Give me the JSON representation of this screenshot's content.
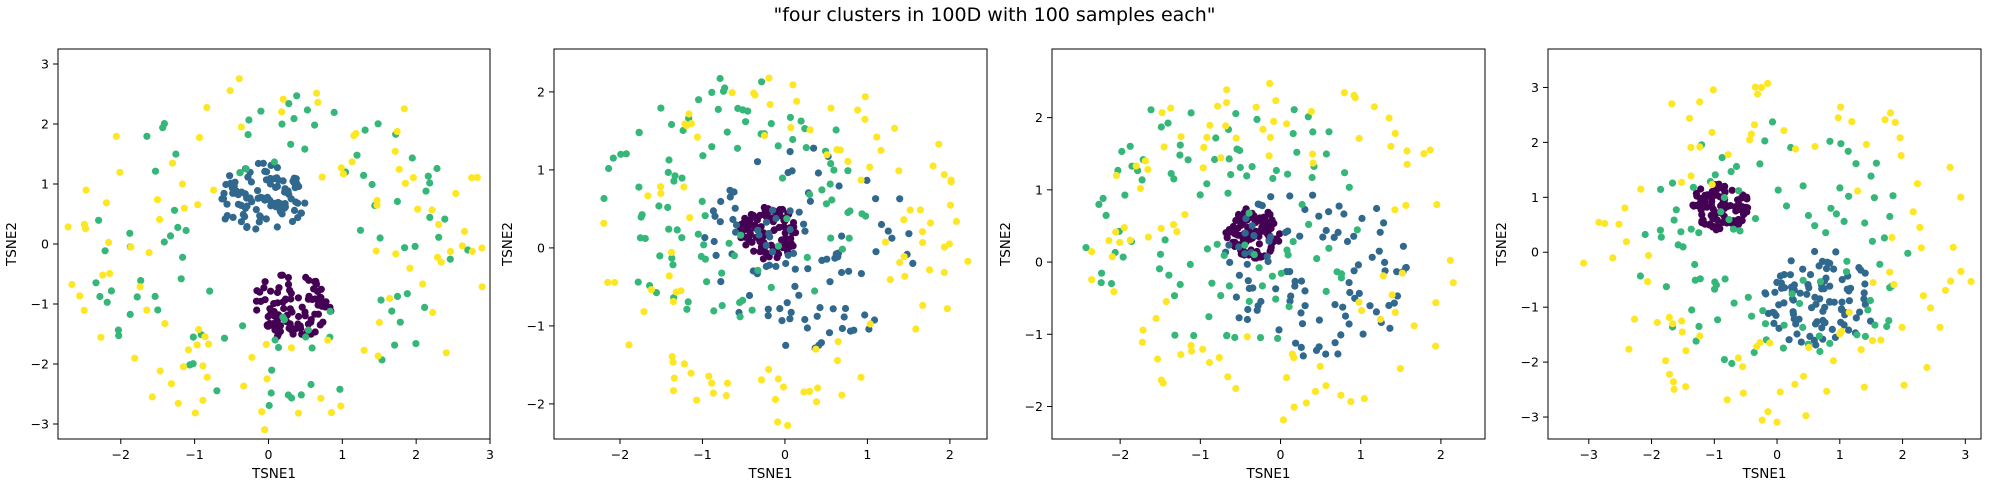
{
  "title": "\"four clusters in 100D with 100 samples each\"",
  "colors": {
    "c0": "#440154",
    "c1": "#31688e",
    "c2": "#35b779",
    "c3": "#fde725"
  },
  "chart_data": [
    {
      "type": "scatter",
      "xlabel": "TSNE1",
      "ylabel": "TSNE2",
      "xlim": [
        -2.85,
        3.0
      ],
      "ylim": [
        -3.25,
        3.25
      ],
      "xticks": [
        -2,
        -1,
        0,
        1,
        2,
        3
      ],
      "yticks": [
        -3,
        -2,
        -1,
        0,
        1,
        2,
        3
      ],
      "grid": false,
      "clusters": [
        {
          "color": "#440154",
          "center": [
            0.3,
            -1.05
          ],
          "inner": 0,
          "outer": 0.55,
          "n": 100
        },
        {
          "color": "#31688e",
          "center": [
            -0.1,
            0.75
          ],
          "inner": 0,
          "outer": 0.6,
          "n": 100
        },
        {
          "color": "#35b779",
          "center": [
            0.1,
            -0.1
          ],
          "inner": 1.0,
          "outer": 2.6,
          "n": 100
        },
        {
          "color": "#fde725",
          "center": [
            0.1,
            -0.1
          ],
          "inner": 1.3,
          "outer": 3.0,
          "n": 100
        }
      ]
    },
    {
      "type": "scatter",
      "xlabel": "TSNE1",
      "ylabel": "TSNE2",
      "xlim": [
        -2.8,
        2.45
      ],
      "ylim": [
        -2.45,
        2.55
      ],
      "xticks": [
        -2,
        -1,
        0,
        1,
        2
      ],
      "yticks": [
        -2,
        -1,
        0,
        1,
        2
      ],
      "grid": false,
      "clusters": [
        {
          "color": "#440154",
          "center": [
            -0.2,
            0.2
          ],
          "inner": 0,
          "outer": 0.35,
          "n": 100
        },
        {
          "color": "#31688e",
          "center": [
            0.3,
            0.0
          ],
          "inner": 0.2,
          "outer": 1.3,
          "n": 100
        },
        {
          "color": "#35b779",
          "center": [
            -0.6,
            0.6
          ],
          "inner": 0.4,
          "outer": 1.6,
          "n": 100
        },
        {
          "color": "#fde725",
          "center": [
            0.0,
            0.0
          ],
          "inner": 1.2,
          "outer": 2.3,
          "n": 100
        }
      ]
    },
    {
      "type": "scatter",
      "xlabel": "TSNE1",
      "ylabel": "TSNE2",
      "xlim": [
        -2.85,
        2.55
      ],
      "ylim": [
        -2.45,
        2.95
      ],
      "xticks": [
        -2,
        -1,
        0,
        1,
        2
      ],
      "yticks": [
        -2,
        -1,
        0,
        1,
        2
      ],
      "grid": false,
      "clusters": [
        {
          "color": "#440154",
          "center": [
            -0.35,
            0.4
          ],
          "inner": 0,
          "outer": 0.35,
          "n": 100
        },
        {
          "color": "#31688e",
          "center": [
            0.45,
            -0.15
          ],
          "inner": 0.2,
          "outer": 1.2,
          "n": 100
        },
        {
          "color": "#35b779",
          "center": [
            -0.7,
            0.6
          ],
          "inner": 0.3,
          "outer": 1.8,
          "n": 100
        },
        {
          "color": "#fde725",
          "center": [
            0.0,
            0.2
          ],
          "inner": 1.2,
          "outer": 2.4,
          "n": 100
        }
      ]
    },
    {
      "type": "scatter",
      "xlabel": "TSNE1",
      "ylabel": "TSNE2",
      "xlim": [
        -3.65,
        3.25
      ],
      "ylim": [
        -3.4,
        3.7
      ],
      "xticks": [
        -3,
        -2,
        -1,
        0,
        1,
        2,
        3
      ],
      "yticks": [
        -3,
        -2,
        -1,
        0,
        1,
        2,
        3
      ],
      "grid": false,
      "clusters": [
        {
          "color": "#440154",
          "center": [
            -0.9,
            0.85
          ],
          "inner": 0,
          "outer": 0.45,
          "n": 100
        },
        {
          "color": "#31688e",
          "center": [
            0.7,
            -0.85
          ],
          "inner": 0,
          "outer": 0.9,
          "n": 100
        },
        {
          "color": "#35b779",
          "center": [
            0.0,
            0.1
          ],
          "inner": 0.6,
          "outer": 2.3,
          "n": 100
        },
        {
          "color": "#fde725",
          "center": [
            0.0,
            0.0
          ],
          "inner": 1.5,
          "outer": 3.2,
          "n": 100
        }
      ]
    }
  ]
}
